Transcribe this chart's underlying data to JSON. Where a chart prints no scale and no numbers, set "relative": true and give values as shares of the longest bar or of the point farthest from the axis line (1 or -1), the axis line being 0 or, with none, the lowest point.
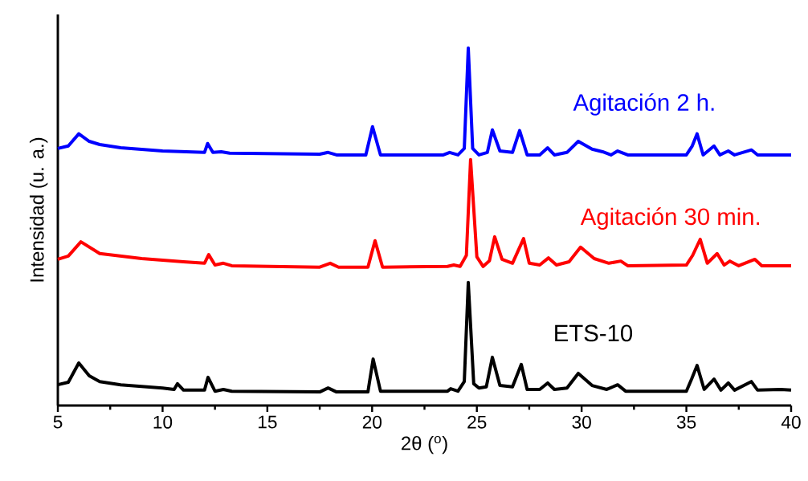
{
  "chart_data": {
    "type": "line",
    "relative": true,
    "xlabel": "2θ ($^{o}$)",
    "ylabel": "Intensidad (u. a.)",
    "xlim": [
      5,
      40
    ],
    "xticks": [
      5,
      10,
      15,
      20,
      25,
      30,
      35,
      40
    ],
    "series": [
      {
        "name": "Agitación 2 h.",
        "color": "#0000ff",
        "x": [
          5.0,
          5.5,
          6.0,
          6.5,
          7.0,
          8.0,
          10.0,
          12.0,
          12.15,
          12.4,
          12.8,
          13.2,
          17.5,
          17.9,
          18.3,
          19.7,
          20.02,
          20.4,
          23.4,
          23.7,
          24.1,
          24.4,
          24.59,
          24.8,
          25.1,
          25.5,
          25.74,
          26.1,
          26.7,
          27.04,
          27.4,
          28.0,
          28.38,
          28.7,
          29.3,
          29.84,
          30.5,
          31.0,
          31.4,
          31.72,
          32.2,
          35.0,
          35.28,
          35.51,
          35.8,
          36.32,
          36.6,
          37.0,
          37.3,
          38.11,
          38.4,
          40.0
        ],
        "values": [
          0.719,
          0.726,
          0.76,
          0.739,
          0.73,
          0.721,
          0.712,
          0.708,
          0.733,
          0.708,
          0.71,
          0.706,
          0.703,
          0.708,
          0.701,
          0.701,
          0.78,
          0.701,
          0.701,
          0.708,
          0.701,
          0.719,
          1.0,
          0.719,
          0.701,
          0.708,
          0.771,
          0.712,
          0.708,
          0.769,
          0.701,
          0.701,
          0.721,
          0.701,
          0.708,
          0.739,
          0.717,
          0.71,
          0.701,
          0.712,
          0.701,
          0.701,
          0.726,
          0.76,
          0.701,
          0.726,
          0.701,
          0.712,
          0.701,
          0.715,
          0.701,
          0.701
        ]
      },
      {
        "name": "Agitación 30 min.",
        "color": "#ff0000",
        "x": [
          5.0,
          5.5,
          6.1,
          7.0,
          9.0,
          11.0,
          12.0,
          12.2,
          12.5,
          12.9,
          13.3,
          17.5,
          18.0,
          18.4,
          19.8,
          20.14,
          20.5,
          23.6,
          23.9,
          24.2,
          24.5,
          24.7,
          25.0,
          25.3,
          25.6,
          25.85,
          26.2,
          26.7,
          27.23,
          27.5,
          28.0,
          28.42,
          28.8,
          29.4,
          29.95,
          30.6,
          31.3,
          31.87,
          32.2,
          35.0,
          35.3,
          35.66,
          36.0,
          36.47,
          36.8,
          37.08,
          37.5,
          38.27,
          38.6,
          40.0
        ],
        "values": [
          0.409,
          0.418,
          0.458,
          0.425,
          0.411,
          0.402,
          0.398,
          0.422,
          0.393,
          0.398,
          0.391,
          0.387,
          0.398,
          0.387,
          0.387,
          0.461,
          0.387,
          0.389,
          0.393,
          0.389,
          0.42,
          0.688,
          0.416,
          0.389,
          0.405,
          0.472,
          0.409,
          0.398,
          0.467,
          0.398,
          0.393,
          0.413,
          0.393,
          0.402,
          0.443,
          0.411,
          0.398,
          0.404,
          0.391,
          0.393,
          0.42,
          0.465,
          0.398,
          0.425,
          0.393,
          0.404,
          0.391,
          0.409,
          0.391,
          0.391
        ]
      },
      {
        "name": "ETS-10",
        "color": "#000000",
        "x": [
          5.0,
          5.5,
          6.0,
          6.5,
          7.0,
          8.0,
          10.0,
          10.55,
          10.71,
          11.0,
          12.0,
          12.17,
          12.5,
          12.9,
          13.3,
          17.5,
          17.9,
          18.3,
          19.8,
          20.05,
          20.4,
          23.6,
          23.75,
          24.1,
          24.4,
          24.59,
          24.85,
          25.1,
          25.45,
          25.74,
          26.1,
          26.7,
          27.12,
          27.4,
          28.0,
          28.38,
          28.7,
          29.3,
          29.84,
          30.5,
          31.2,
          31.72,
          32.1,
          35.0,
          35.25,
          35.51,
          35.85,
          36.32,
          36.65,
          37.0,
          37.3,
          38.1,
          38.4,
          39.5,
          40.0
        ],
        "values": [
          0.058,
          0.065,
          0.119,
          0.083,
          0.067,
          0.058,
          0.049,
          0.045,
          0.061,
          0.043,
          0.043,
          0.079,
          0.04,
          0.045,
          0.04,
          0.038,
          0.049,
          0.038,
          0.038,
          0.13,
          0.04,
          0.04,
          0.047,
          0.04,
          0.067,
          0.344,
          0.061,
          0.049,
          0.052,
          0.135,
          0.056,
          0.052,
          0.115,
          0.045,
          0.045,
          0.063,
          0.045,
          0.049,
          0.09,
          0.056,
          0.045,
          0.058,
          0.04,
          0.04,
          0.074,
          0.112,
          0.045,
          0.074,
          0.043,
          0.063,
          0.043,
          0.067,
          0.043,
          0.045,
          0.043
        ]
      }
    ]
  }
}
